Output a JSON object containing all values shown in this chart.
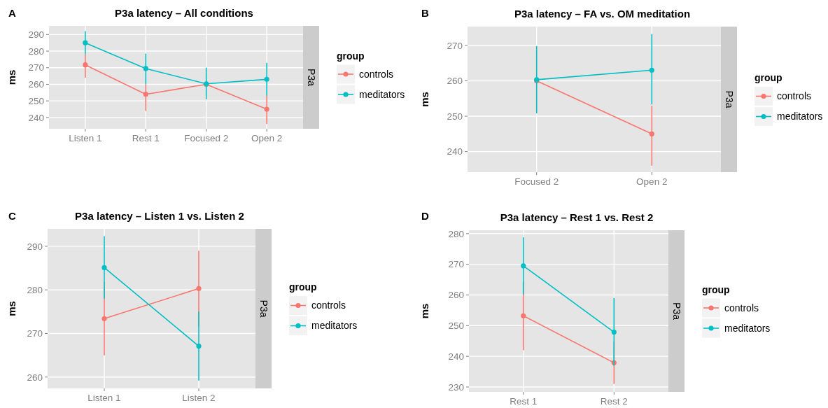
{
  "chart_data": [
    {
      "type": "line",
      "title": "P3a latency – All conditions",
      "ylabel": "ms",
      "annotations": [
        "A",
        "P3a"
      ],
      "legend_title": "group",
      "legend": "right",
      "grid": true,
      "marker": "circle",
      "categories": [
        "Listen 1",
        "Rest 1",
        "Focused 2",
        "Open 2"
      ],
      "ylim": [
        233.2,
        295.2
      ],
      "yticks": [
        240,
        250,
        260,
        270,
        280,
        290
      ],
      "series": [
        {
          "name": "controls",
          "color": "#f8766d",
          "values": [
            271.7,
            254,
            260,
            245
          ],
          "errors": [
            [
              264,
              278
            ],
            [
              244,
              260
            ],
            null,
            [
              236,
              253
            ]
          ]
        },
        {
          "name": "meditators",
          "color": "#00bfc4",
          "values": [
            285,
            269.5,
            260.3,
            263
          ],
          "errors": [
            [
              278,
              292
            ],
            [
              260,
              278.5
            ],
            [
              251,
              270
            ],
            [
              253,
              273
            ]
          ]
        }
      ]
    },
    {
      "type": "line",
      "title": "P3a latency – FA vs. OM meditation",
      "ylabel": "ms",
      "annotations": [
        "B",
        "P3a"
      ],
      "legend_title": "group",
      "legend": "right",
      "grid": true,
      "marker": "circle",
      "categories": [
        "Focused 2",
        "Open 2"
      ],
      "ylim": [
        234.2,
        275.3
      ],
      "yticks": [
        240,
        250,
        260,
        270
      ],
      "series": [
        {
          "name": "controls",
          "color": "#f8766d",
          "values": [
            260,
            245
          ],
          "errors": [
            null,
            [
              236,
              253
            ]
          ]
        },
        {
          "name": "meditators",
          "color": "#00bfc4",
          "values": [
            260.3,
            263
          ],
          "errors": [
            [
              250.8,
              269.8
            ],
            [
              253.3,
              273.2
            ]
          ]
        }
      ]
    },
    {
      "type": "line",
      "title": "P3a latency – Listen 1 vs. Listen 2",
      "ylabel": "ms",
      "annotations": [
        "C",
        "P3a"
      ],
      "legend_title": "group",
      "legend": "right",
      "grid": true,
      "marker": "circle",
      "categories": [
        "Listen 1",
        "Listen 2"
      ],
      "ylim": [
        257.4,
        294
      ],
      "yticks": [
        260,
        270,
        280,
        290
      ],
      "series": [
        {
          "name": "controls",
          "color": "#f8766d",
          "values": [
            273.4,
            280.3
          ],
          "errors": [
            [
              265,
              281.8
            ],
            [
              271.6,
              289
            ]
          ]
        },
        {
          "name": "meditators",
          "color": "#00bfc4",
          "values": [
            285.1,
            267.1
          ],
          "errors": [
            [
              278,
              292.3
            ],
            [
              259.2,
              275
            ]
          ]
        }
      ]
    },
    {
      "type": "line",
      "title": "P3a latency – Rest 1 vs. Rest 2",
      "ylabel": "ms",
      "annotations": [
        "D",
        "P3a"
      ],
      "legend_title": "group",
      "legend": "right",
      "grid": true,
      "marker": "circle",
      "categories": [
        "Rest 1",
        "Rest 2"
      ],
      "ylim": [
        228.4,
        281.1
      ],
      "yticks": [
        230,
        240,
        250,
        260,
        270,
        280
      ],
      "series": [
        {
          "name": "controls",
          "color": "#f8766d",
          "values": [
            253.2,
            237.9
          ],
          "errors": [
            [
              242,
              264.3
            ],
            [
              231,
              244.8
            ]
          ]
        },
        {
          "name": "meditators",
          "color": "#00bfc4",
          "values": [
            269.5,
            247.9
          ],
          "errors": [
            [
              260.2,
              278.8
            ],
            [
              237,
              259
            ]
          ]
        }
      ]
    }
  ]
}
